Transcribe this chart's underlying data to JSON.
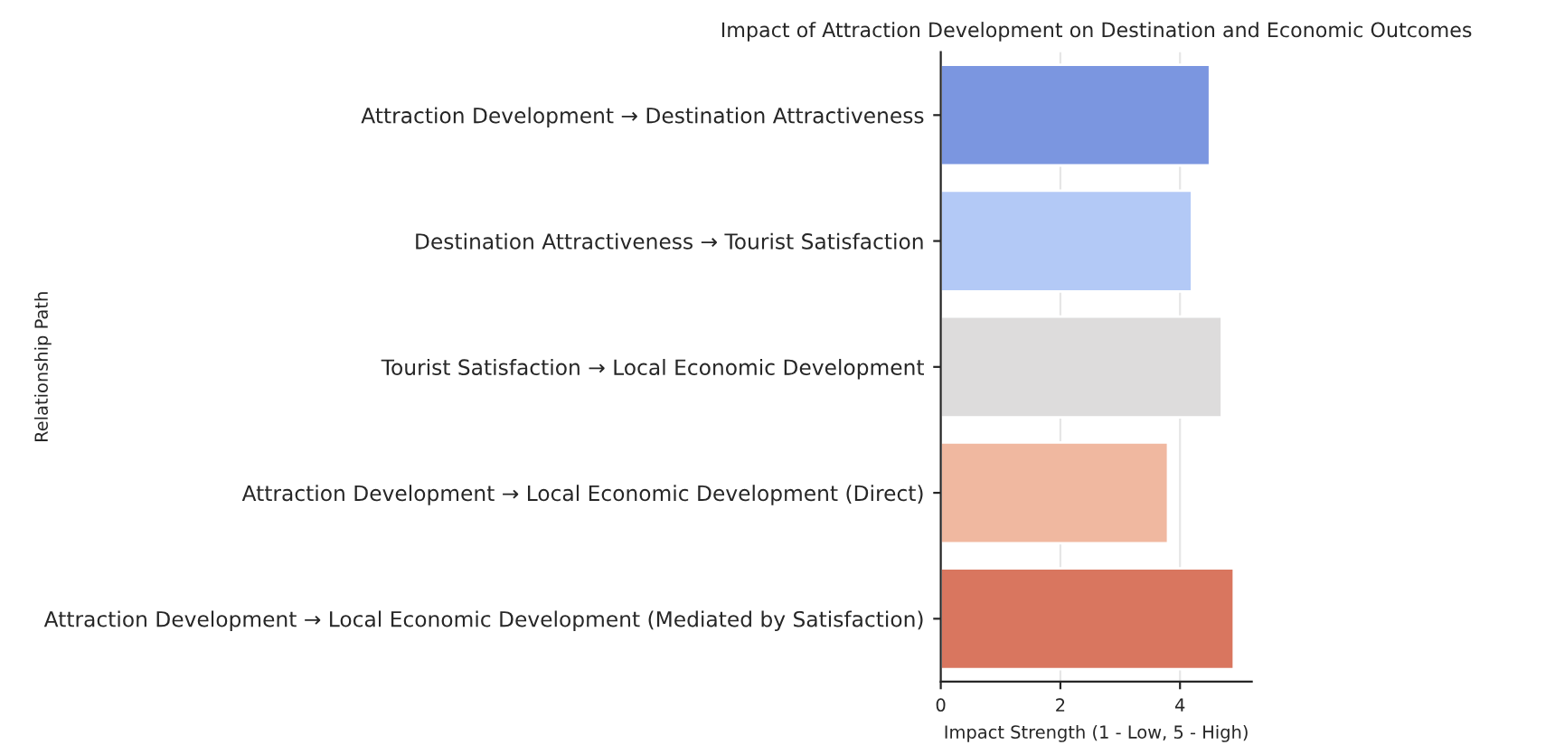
{
  "chart_data": {
    "type": "bar",
    "orientation": "horizontal",
    "title": "Impact of Attraction Development on Destination and Economic Outcomes",
    "xlabel": "Impact Strength (1 - Low, 5 - High)",
    "ylabel": "Relationship Path",
    "categories": [
      "Attraction Development → Destination Attractiveness",
      "Destination Attractiveness → Tourist Satisfaction",
      "Tourist Satisfaction → Local Economic Development",
      "Attraction Development → Local Economic Development (Direct)",
      "Attraction Development → Local Economic Development (Mediated by Satisfaction)"
    ],
    "values": [
      4.5,
      4.2,
      4.7,
      3.8,
      4.9
    ],
    "colors": [
      "#7b96e0",
      "#b3c9f6",
      "#dddcdc",
      "#f0b8a0",
      "#d9765f"
    ],
    "xlim": [
      0,
      5.2
    ],
    "xticks": [
      0,
      2,
      4
    ],
    "grid": "x"
  }
}
